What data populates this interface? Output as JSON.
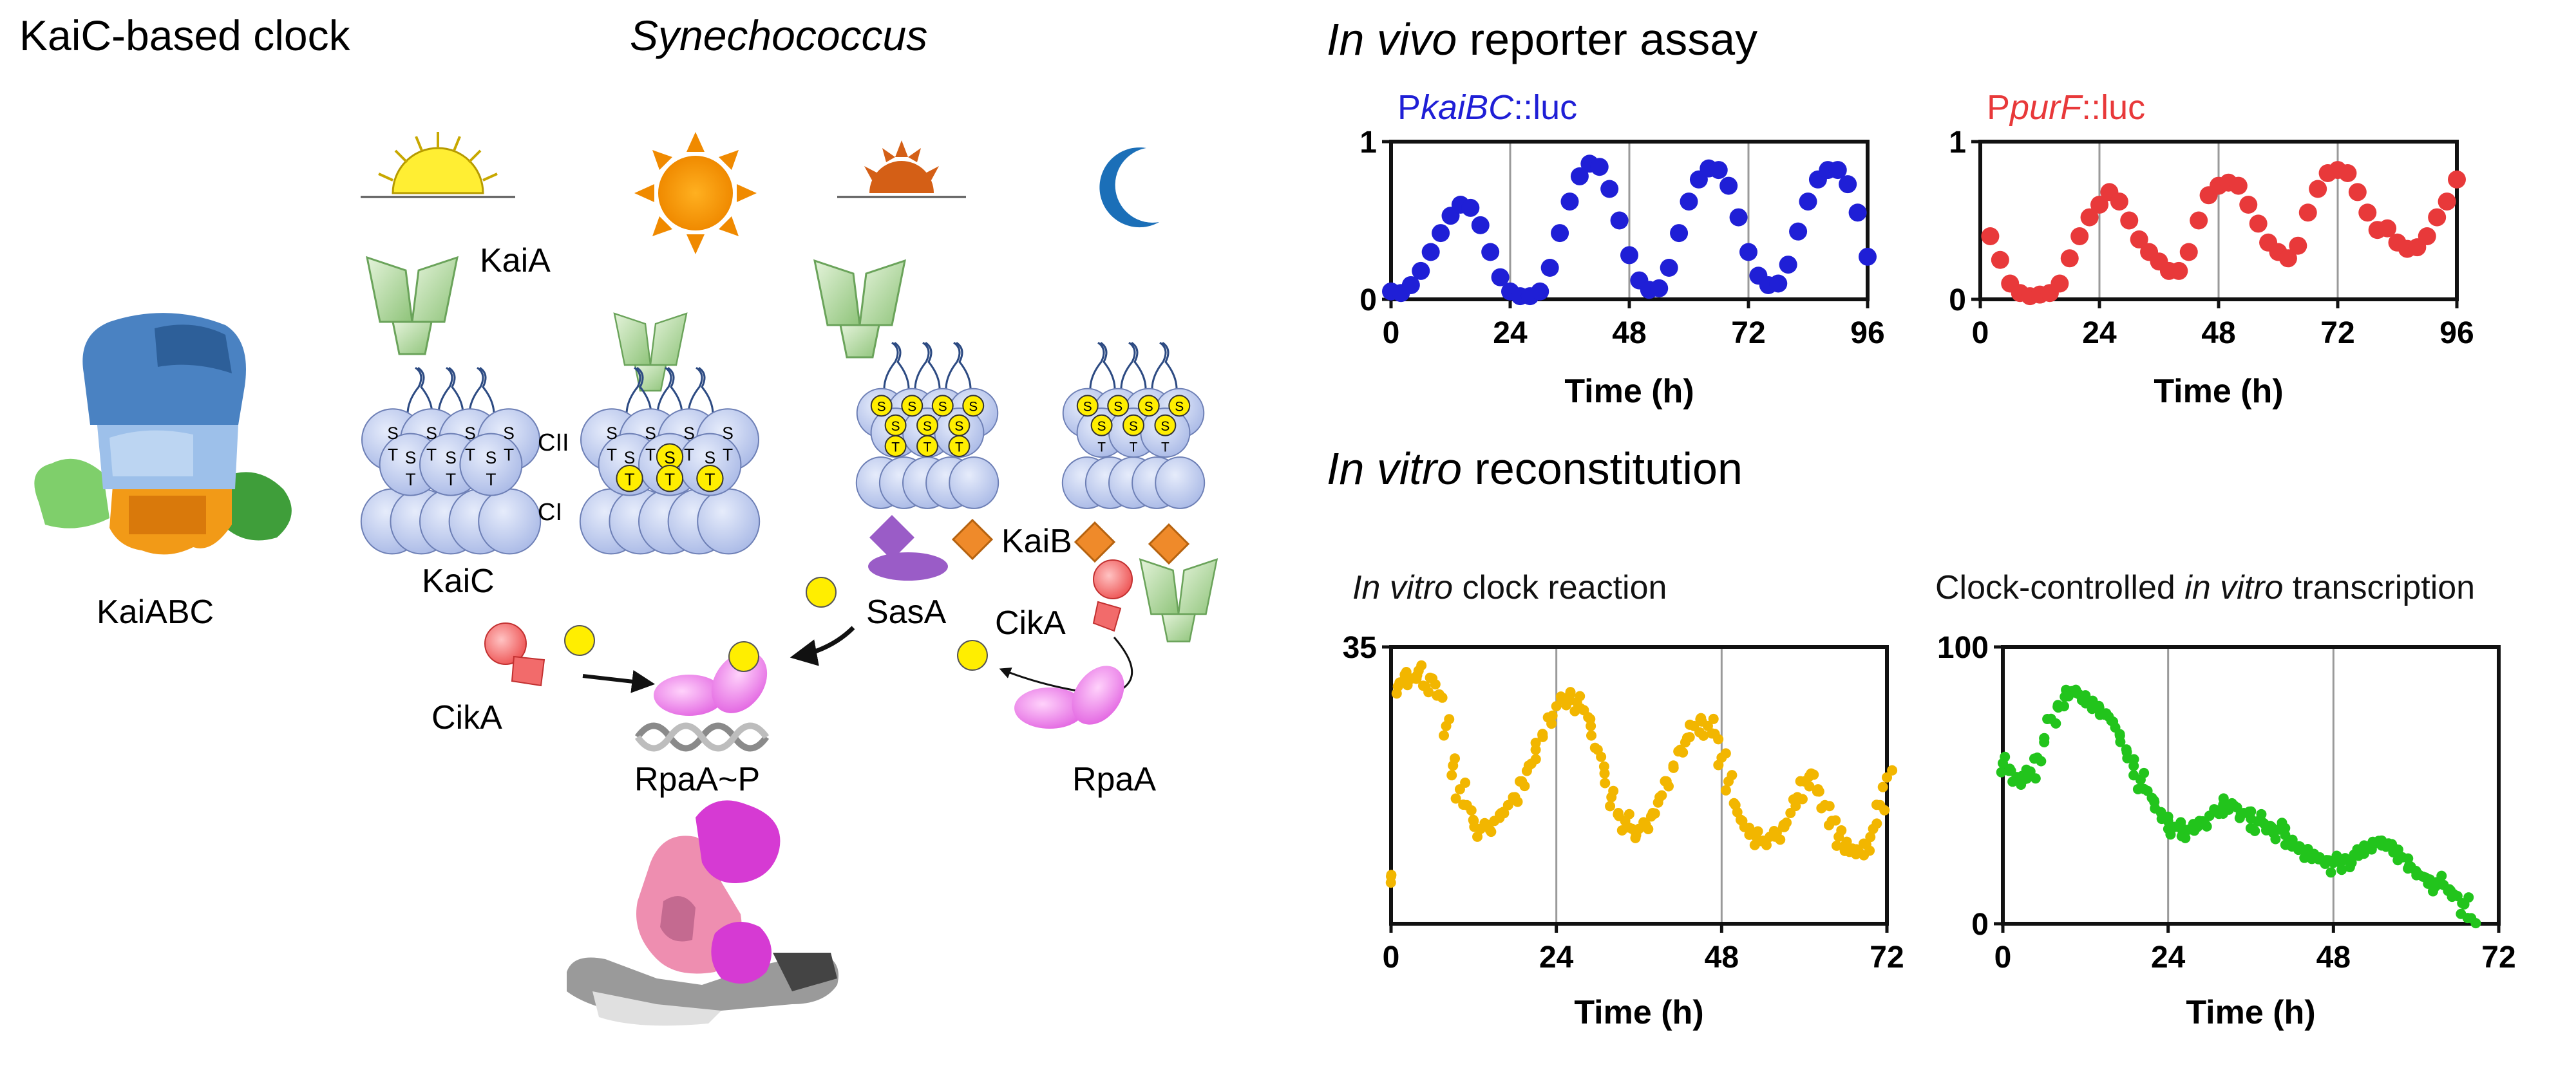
{
  "headings": {
    "kaic_clock": "KaiC-based clock",
    "organism": "Synechococcus",
    "in_vivo_italic": "In vivo",
    "in_vivo_rest": " reporter assay",
    "in_vitro_italic": "In vitro",
    "in_vitro_rest": " reconstitution"
  },
  "labels": {
    "kaiabc": "KaiABC",
    "kaia": "KaiA",
    "kaic": "KaiC",
    "cii": "CII",
    "ci": "CI",
    "kaib": "KaiB",
    "sasa": "SasA",
    "cika_left": "CikA",
    "cika_right": "CikA",
    "rpaa_p": "RpaA~P",
    "rpaa": "RpaA",
    "phospho_s": "S",
    "phospho_t": "T"
  },
  "chart_data": [
    {
      "type": "scatter",
      "title_parts": [
        {
          "text": "P",
          "italic": false
        },
        {
          "text": "kaiBC",
          "italic": true
        },
        {
          "text": "::luc",
          "italic": false
        }
      ],
      "title_color": "#1f1fd6",
      "color": "#1f1fd6",
      "xlabel": "Time (h)",
      "xlim": [
        0,
        96
      ],
      "ylim": [
        0,
        1
      ],
      "xticks": [
        "0",
        "24",
        "48",
        "72",
        "96"
      ],
      "yticks": [
        "0",
        "1"
      ],
      "vlines": [
        24,
        48,
        72
      ],
      "x": [
        0,
        2,
        4,
        6,
        8,
        10,
        12,
        14,
        16,
        18,
        20,
        22,
        24,
        26,
        28,
        30,
        32,
        34,
        36,
        38,
        40,
        42,
        44,
        46,
        48,
        50,
        52,
        54,
        56,
        58,
        60,
        62,
        64,
        66,
        68,
        70,
        72,
        74,
        76,
        78,
        80,
        82,
        84,
        86,
        88,
        90,
        92,
        94,
        96
      ],
      "y": [
        0.05,
        0.04,
        0.09,
        0.18,
        0.3,
        0.42,
        0.53,
        0.6,
        0.58,
        0.47,
        0.3,
        0.14,
        0.05,
        0.02,
        0.02,
        0.05,
        0.2,
        0.42,
        0.62,
        0.78,
        0.86,
        0.84,
        0.7,
        0.5,
        0.28,
        0.12,
        0.06,
        0.07,
        0.2,
        0.42,
        0.62,
        0.76,
        0.83,
        0.82,
        0.72,
        0.52,
        0.3,
        0.15,
        0.09,
        0.1,
        0.22,
        0.43,
        0.62,
        0.76,
        0.82,
        0.82,
        0.73,
        0.55,
        0.27
      ]
    },
    {
      "type": "scatter",
      "title_parts": [
        {
          "text": "P",
          "italic": false
        },
        {
          "text": "purF",
          "italic": true
        },
        {
          "text": "::luc",
          "italic": false
        }
      ],
      "title_color": "#e8393a",
      "color": "#e8393a",
      "xlabel": "Time (h)",
      "xlim": [
        0,
        96
      ],
      "ylim": [
        0,
        1
      ],
      "xticks": [
        "0",
        "24",
        "48",
        "72",
        "96"
      ],
      "yticks": [
        "0",
        "1"
      ],
      "vlines": [
        24,
        48,
        72
      ],
      "x": [
        2,
        4,
        6,
        8,
        10,
        12,
        14,
        16,
        18,
        20,
        22,
        24,
        26,
        28,
        30,
        32,
        34,
        36,
        38,
        40,
        42,
        44,
        46,
        48,
        50,
        52,
        54,
        56,
        58,
        60,
        62,
        64,
        66,
        68,
        70,
        72,
        74,
        76,
        78,
        80,
        82,
        84,
        86,
        88,
        90,
        92,
        94,
        96
      ],
      "y": [
        0.4,
        0.25,
        0.1,
        0.04,
        0.02,
        0.03,
        0.04,
        0.1,
        0.26,
        0.4,
        0.52,
        0.6,
        0.68,
        0.62,
        0.5,
        0.38,
        0.3,
        0.24,
        0.18,
        0.18,
        0.3,
        0.5,
        0.66,
        0.72,
        0.74,
        0.72,
        0.6,
        0.48,
        0.36,
        0.3,
        0.26,
        0.34,
        0.55,
        0.7,
        0.8,
        0.82,
        0.8,
        0.68,
        0.55,
        0.44,
        0.45,
        0.36,
        0.32,
        0.33,
        0.4,
        0.52,
        0.62,
        0.76
      ]
    },
    {
      "type": "scatter",
      "title_parts": [
        {
          "text": "In vitro",
          "italic": true
        },
        {
          "text": " clock reaction",
          "italic": false
        }
      ],
      "title_color": "#111111",
      "color": "#f2b600",
      "xlabel": "Time (h)",
      "xlim": [
        0,
        72
      ],
      "ylim": [
        0,
        35
      ],
      "xticks": [
        "0",
        "24",
        "48",
        "72"
      ],
      "yticks": [
        "35"
      ],
      "vlines": [
        24,
        48
      ],
      "x": [
        0,
        1,
        2,
        3,
        4,
        5,
        6,
        7,
        8,
        9,
        10,
        11,
        12,
        13,
        14,
        15,
        16,
        17,
        18,
        19,
        20,
        21,
        22,
        23,
        24,
        25,
        26,
        27,
        28,
        29,
        30,
        31,
        32,
        33,
        34,
        35,
        36,
        37,
        38,
        39,
        40,
        41,
        42,
        43,
        44,
        45,
        46,
        47,
        48,
        49,
        50,
        51,
        52,
        53,
        54,
        55,
        56,
        57,
        58,
        59,
        60,
        61,
        62,
        63,
        64,
        65,
        66,
        67,
        68,
        69,
        70,
        71,
        72
      ],
      "y": [
        6,
        30,
        31.5,
        31,
        32,
        30,
        31,
        29,
        25,
        20,
        17,
        15,
        13,
        12,
        12.5,
        13,
        14,
        15,
        16,
        18,
        20,
        22,
        24,
        26,
        27.5,
        28.5,
        29,
        28,
        27,
        25,
        22,
        19,
        16,
        14,
        13,
        12,
        12,
        12.5,
        14,
        16,
        18,
        20,
        22,
        23.5,
        25,
        26,
        25,
        24,
        21,
        18,
        15,
        13,
        12,
        11,
        10.5,
        11,
        11.5,
        12.5,
        14,
        16,
        18,
        19,
        17,
        15,
        13,
        11,
        10,
        9.5,
        9,
        10,
        12,
        15,
        18.5
      ]
    },
    {
      "type": "scatter",
      "title_parts": [
        {
          "text": "Clock-controlled ",
          "italic": false
        },
        {
          "text": "in vitro",
          "italic": true
        },
        {
          "text": " transcription",
          "italic": false
        }
      ],
      "title_color": "#111111",
      "color": "#22c41c",
      "xlabel": "Time (h)",
      "xlim": [
        0,
        72
      ],
      "ylim": [
        0,
        100
      ],
      "xticks": [
        "0",
        "24",
        "48",
        "72"
      ],
      "yticks": [
        "0",
        "100"
      ],
      "vlines": [
        24,
        48
      ],
      "x": [
        0,
        1,
        2,
        3,
        4,
        5,
        6,
        7,
        8,
        9,
        10,
        11,
        12,
        13,
        14,
        15,
        16,
        17,
        18,
        19,
        20,
        21,
        22,
        23,
        24,
        25,
        26,
        27,
        28,
        29,
        30,
        31,
        32,
        33,
        34,
        35,
        36,
        37,
        38,
        39,
        40,
        41,
        42,
        43,
        44,
        45,
        46,
        47,
        48,
        49,
        50,
        51,
        52,
        53,
        54,
        55,
        56,
        57,
        58,
        59,
        60,
        61,
        62,
        63,
        64,
        65,
        66,
        67,
        68
      ],
      "y": [
        58,
        56,
        53,
        52,
        55,
        60,
        67,
        74,
        79,
        82,
        84,
        83,
        82,
        80,
        78,
        76,
        73,
        68,
        62,
        57,
        52,
        48,
        44,
        40,
        37,
        35,
        34,
        34,
        35,
        37,
        39,
        41,
        43,
        43,
        42,
        40,
        38,
        37,
        36,
        35,
        34,
        32,
        30,
        28,
        26,
        25,
        24,
        23,
        22,
        22,
        23,
        25,
        27,
        28,
        29,
        30,
        29,
        27,
        24,
        21,
        19,
        17,
        16,
        15,
        14,
        12,
        10,
        7,
        2
      ]
    }
  ]
}
